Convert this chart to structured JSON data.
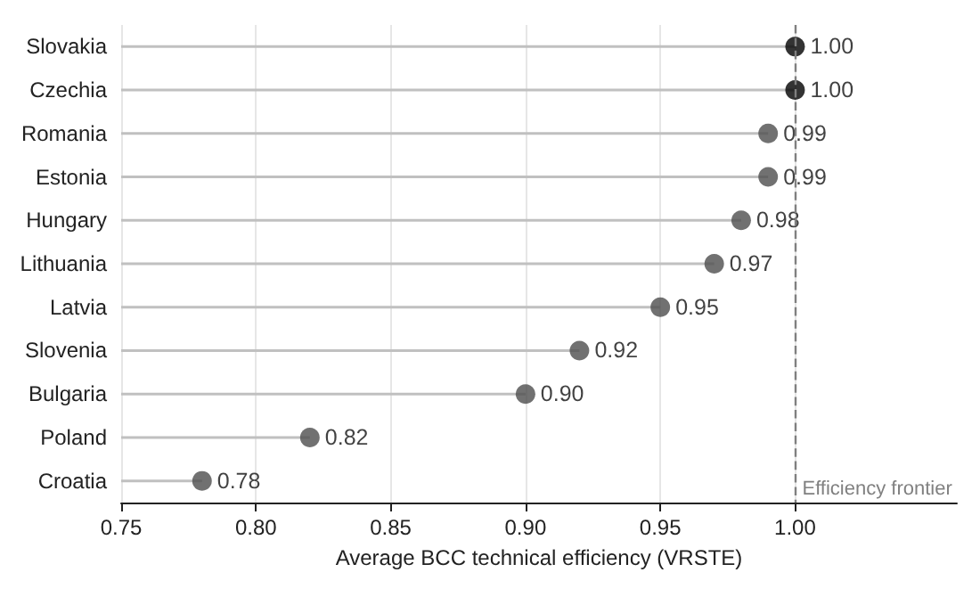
{
  "chart_data": {
    "type": "lollipop",
    "orientation": "horizontal",
    "xlabel": "Average BCC technical efficiency (VRSTE)",
    "categories": [
      "Slovakia",
      "Czechia",
      "Romania",
      "Estonia",
      "Hungary",
      "Lithuania",
      "Latvia",
      "Slovenia",
      "Bulgaria",
      "Poland",
      "Croatia"
    ],
    "values": [
      1.0,
      1.0,
      0.99,
      0.99,
      0.98,
      0.97,
      0.95,
      0.92,
      0.9,
      0.82,
      0.78
    ],
    "colors": [
      "#000000",
      "#000000",
      "#4d4d4d",
      "#4d4d4d",
      "#4d4d4d",
      "#4d4d4d",
      "#4d4d4d",
      "#4d4d4d",
      "#4d4d4d",
      "#4d4d4d",
      "#4d4d4d"
    ],
    "value_labels": [
      "1.00",
      "1.00",
      "0.99",
      "0.99",
      "0.98",
      "0.97",
      "0.95",
      "0.92",
      "0.90",
      "0.82",
      "0.78"
    ],
    "xlim": [
      0.75,
      1.06
    ],
    "xticks": [
      {
        "value": 0.75,
        "label": "0.75"
      },
      {
        "value": 0.8,
        "label": "0.80"
      },
      {
        "value": 0.85,
        "label": "0.85"
      },
      {
        "value": 0.9,
        "label": "0.90"
      },
      {
        "value": 0.95,
        "label": "0.95"
      },
      {
        "value": 1.0,
        "label": "1.00"
      }
    ],
    "grid": "x",
    "marker": "circle",
    "ref_lines": [
      {
        "axis": "x",
        "value": 1.0,
        "label": "Efficiency frontier",
        "color": "#808080",
        "line_style": "dashed"
      }
    ]
  }
}
